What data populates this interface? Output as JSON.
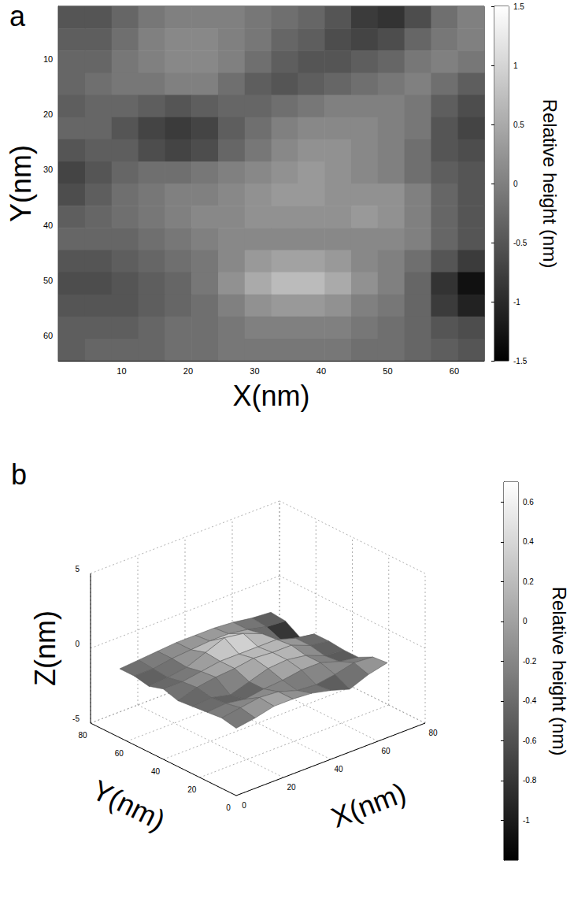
{
  "chart_data": [
    {
      "type": "heatmap",
      "title": "a",
      "x_label": "X(nm)",
      "y_label": "Y(nm)",
      "color": "gray",
      "grid": false,
      "xlim": [
        0.5,
        64.5
      ],
      "ylim": [
        0.5,
        64.5
      ],
      "xticks": [
        10,
        20,
        30,
        40,
        50,
        60
      ],
      "yticks": [
        10,
        20,
        30,
        40,
        50,
        60
      ],
      "x": [
        2.5,
        6.5,
        10.5,
        14.5,
        18.5,
        22.5,
        26.5,
        30.5,
        34.5,
        38.5,
        42.5,
        46.5,
        50.5,
        54.5,
        58.5,
        62.5
      ],
      "y": [
        2.5,
        6.5,
        10.5,
        14.5,
        18.5,
        22.5,
        26.5,
        30.5,
        34.5,
        38.5,
        42.5,
        46.5,
        50.5,
        54.5,
        58.5,
        62.5
      ],
      "z": [
        [
          -0.5,
          -0.5,
          -0.3,
          -0.1,
          0,
          0,
          0,
          -0.1,
          -0.2,
          -0.3,
          -0.5,
          -0.8,
          -0.9,
          -0.6,
          -0.2,
          0
        ],
        [
          -0.4,
          -0.4,
          -0.2,
          0,
          0.1,
          0.1,
          0,
          -0.1,
          -0.3,
          -0.4,
          -0.6,
          -0.7,
          -0.6,
          -0.3,
          -0.1,
          0
        ],
        [
          -0.3,
          -0.3,
          -0.1,
          0,
          0.1,
          0.1,
          0,
          -0.2,
          -0.4,
          -0.5,
          -0.5,
          -0.4,
          -0.3,
          -0.1,
          0,
          -0.1
        ],
        [
          -0.3,
          -0.2,
          -0.1,
          -0.1,
          0,
          0,
          -0.2,
          -0.4,
          -0.5,
          -0.4,
          -0.3,
          -0.2,
          -0.1,
          0,
          -0.2,
          -0.4
        ],
        [
          -0.4,
          -0.3,
          -0.3,
          -0.4,
          -0.5,
          -0.4,
          -0.3,
          -0.3,
          -0.2,
          -0.1,
          0,
          0,
          0,
          -0.1,
          -0.4,
          -0.6
        ],
        [
          -0.3,
          -0.3,
          -0.5,
          -0.7,
          -0.8,
          -0.7,
          -0.4,
          -0.2,
          0,
          0.1,
          0.1,
          0.1,
          0,
          -0.1,
          -0.5,
          -0.7
        ],
        [
          -0.5,
          -0.4,
          -0.4,
          -0.6,
          -0.7,
          -0.6,
          -0.3,
          -0.1,
          0.1,
          0.2,
          0.2,
          0.1,
          0,
          -0.2,
          -0.5,
          -0.6
        ],
        [
          -0.7,
          -0.5,
          -0.3,
          -0.2,
          -0.2,
          -0.1,
          0,
          0.1,
          0.2,
          0.3,
          0.2,
          0.1,
          0,
          -0.2,
          -0.4,
          -0.5
        ],
        [
          -0.6,
          -0.4,
          -0.2,
          -0.1,
          0,
          0,
          0.1,
          0.2,
          0.3,
          0.3,
          0.2,
          0.2,
          0.2,
          0,
          -0.3,
          -0.5
        ],
        [
          -0.4,
          -0.3,
          -0.2,
          -0.1,
          0,
          0.1,
          0.1,
          0.2,
          0.2,
          0.2,
          0.2,
          0.3,
          0.2,
          0,
          -0.3,
          -0.5
        ],
        [
          -0.3,
          -0.3,
          -0.3,
          -0.2,
          -0.1,
          0,
          0.1,
          0.1,
          0.1,
          0.1,
          0.1,
          0.1,
          0.1,
          0,
          -0.3,
          -0.5
        ],
        [
          -0.5,
          -0.5,
          -0.4,
          -0.3,
          -0.2,
          -0.1,
          0.1,
          0.3,
          0.4,
          0.4,
          0.3,
          0.1,
          0,
          -0.2,
          -0.5,
          -0.8
        ],
        [
          -0.6,
          -0.6,
          -0.5,
          -0.4,
          -0.3,
          -0.1,
          0.2,
          0.5,
          0.7,
          0.7,
          0.5,
          0.2,
          0,
          -0.3,
          -0.9,
          -1.3
        ],
        [
          -0.5,
          -0.5,
          -0.5,
          -0.4,
          -0.3,
          -0.2,
          0,
          0.2,
          0.3,
          0.3,
          0.2,
          0,
          -0.1,
          -0.3,
          -0.8,
          -1.1
        ],
        [
          -0.4,
          -0.4,
          -0.4,
          -0.3,
          -0.2,
          -0.2,
          -0.1,
          0,
          0,
          0,
          0,
          -0.1,
          -0.2,
          -0.3,
          -0.5,
          -0.6
        ],
        [
          -0.4,
          -0.3,
          -0.3,
          -0.3,
          -0.2,
          -0.2,
          -0.1,
          -0.1,
          -0.1,
          -0.1,
          -0.1,
          -0.2,
          -0.2,
          -0.3,
          -0.4,
          -0.5
        ]
      ],
      "colorbar": {
        "label": "Relative height (nm)",
        "lim": [
          -1.5,
          1.5
        ],
        "ticks": [
          -1.5,
          -1,
          -0.5,
          0,
          0.5,
          1,
          1.5
        ]
      }
    },
    {
      "type": "surface",
      "title": "b",
      "x_label": "X(nm)",
      "y_label": "Y(nm)",
      "z_label": "Z(nm)",
      "color": "gray",
      "grid": true,
      "xlim": [
        0,
        80
      ],
      "ylim": [
        0,
        80
      ],
      "zlim": [
        -5,
        5
      ],
      "xticks": [
        0,
        20,
        40,
        60,
        80
      ],
      "yticks": [
        0,
        20,
        40,
        60,
        80
      ],
      "zticks": [
        -5,
        0,
        5
      ],
      "x": [
        0,
        8,
        16,
        24,
        32,
        40,
        48,
        56,
        64
      ],
      "y": [
        0,
        8,
        16,
        24,
        32,
        40,
        48,
        56,
        64
      ],
      "z": [
        [
          -0.5,
          -0.3,
          0,
          0,
          -0.1,
          -0.4,
          -0.8,
          -0.3,
          0
        ],
        [
          -0.3,
          -0.1,
          0.1,
          0,
          -0.4,
          -0.5,
          -0.3,
          0,
          -0.1
        ],
        [
          -0.4,
          -0.3,
          -0.5,
          -0.3,
          -0.2,
          0,
          0,
          -0.4,
          -0.6
        ],
        [
          -0.5,
          -0.4,
          -0.7,
          -0.3,
          0.1,
          0.2,
          0,
          -0.5,
          -0.6
        ],
        [
          -0.6,
          -0.2,
          0,
          0.1,
          0.3,
          0.2,
          0.2,
          -0.3,
          -0.5
        ],
        [
          -0.3,
          -0.3,
          -0.1,
          0.1,
          0.1,
          0.1,
          0.1,
          -0.3,
          -0.5
        ],
        [
          -0.6,
          -0.5,
          -0.3,
          0.2,
          0.7,
          0.5,
          0,
          -0.9,
          -1.2
        ],
        [
          -0.4,
          -0.4,
          -0.2,
          -0.1,
          0,
          0,
          -0.2,
          -0.5,
          -0.6
        ],
        [
          -0.4,
          -0.3,
          -0.2,
          -0.1,
          -0.1,
          -0.1,
          -0.2,
          -0.4,
          -0.5
        ]
      ],
      "colorbar": {
        "label": "Relative height (nm)",
        "lim": [
          -1.2,
          0.7
        ],
        "ticks": [
          -1,
          -0.8,
          -0.6,
          -0.4,
          -0.2,
          0,
          0.2,
          0.4,
          0.6
        ]
      }
    }
  ]
}
